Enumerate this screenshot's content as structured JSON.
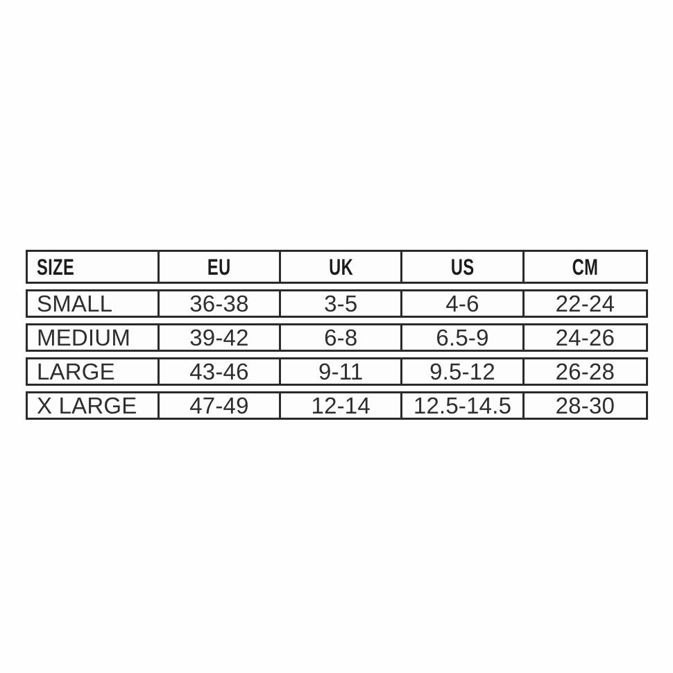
{
  "colors": {
    "background": "#fefefe",
    "border": "#2b2b2b",
    "header_text": "#1c1c1c",
    "cell_text": "#2e2e2e"
  },
  "chart_data": {
    "type": "table",
    "columns": [
      "SIZE",
      "EU",
      "UK",
      "US",
      "CM"
    ],
    "rows": [
      [
        "SMALL",
        "36-38",
        "3-5",
        "4-6",
        "22-24"
      ],
      [
        "MEDIUM",
        "39-42",
        "6-8",
        "6.5-9",
        "24-26"
      ],
      [
        "LARGE",
        "43-46",
        "9-11",
        "9.5-12",
        "26-28"
      ],
      [
        "X LARGE",
        "47-49",
        "12-14",
        "12.5-14.5",
        "28-30"
      ]
    ],
    "layout": {
      "grid": "bordered-rows-with-gaps",
      "first_column_align": "left",
      "other_columns_align": "center"
    }
  }
}
